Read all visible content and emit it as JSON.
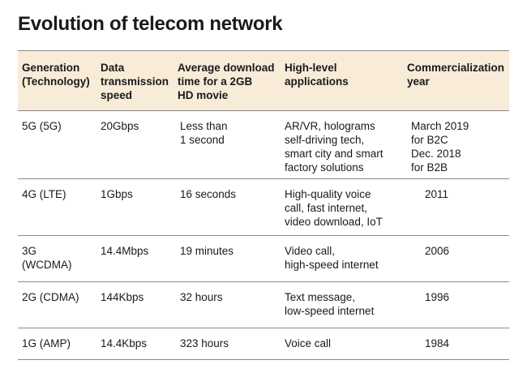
{
  "title": "Evolution of telecom network",
  "headers": [
    [
      "Generation",
      "(Technology)"
    ],
    [
      "Data",
      "transmission",
      "speed"
    ],
    [
      "Average download",
      "time for a 2GB",
      "HD movie"
    ],
    [
      "High-level",
      "applications"
    ],
    [
      "Commercialization",
      "year"
    ]
  ],
  "rows": [
    {
      "generation": [
        "5G (5G)"
      ],
      "speed": [
        "20Gbps"
      ],
      "download": [
        "Less than",
        "1 second"
      ],
      "applications": [
        "AR/VR, holograms",
        "self-driving tech,",
        "smart city and smart",
        "factory solutions"
      ],
      "year": [
        "March 2019",
        "for B2C",
        "Dec. 2018",
        "for B2B"
      ]
    },
    {
      "generation": [
        "4G (LTE)"
      ],
      "speed": [
        "1Gbps"
      ],
      "download": [
        "16 seconds"
      ],
      "applications": [
        "High-quality voice",
        "call, fast internet,",
        "video download, IoT"
      ],
      "year": [
        "2011"
      ]
    },
    {
      "generation": [
        "3G",
        "(WCDMA)"
      ],
      "speed": [
        "14.4Mbps"
      ],
      "download": [
        "19 minutes"
      ],
      "applications": [
        "Video call,",
        "high-speed internet"
      ],
      "year": [
        "2006"
      ]
    },
    {
      "generation": [
        "2G (CDMA)"
      ],
      "speed": [
        "144Kbps"
      ],
      "download": [
        "32 hours"
      ],
      "applications": [
        "Text message,",
        "low-speed internet"
      ],
      "year": [
        "1996"
      ]
    },
    {
      "generation": [
        "1G (AMP)"
      ],
      "speed": [
        "14.4Kbps"
      ],
      "download": [
        "323 hours"
      ],
      "applications": [
        "Voice call"
      ],
      "year": [
        "1984"
      ]
    }
  ]
}
